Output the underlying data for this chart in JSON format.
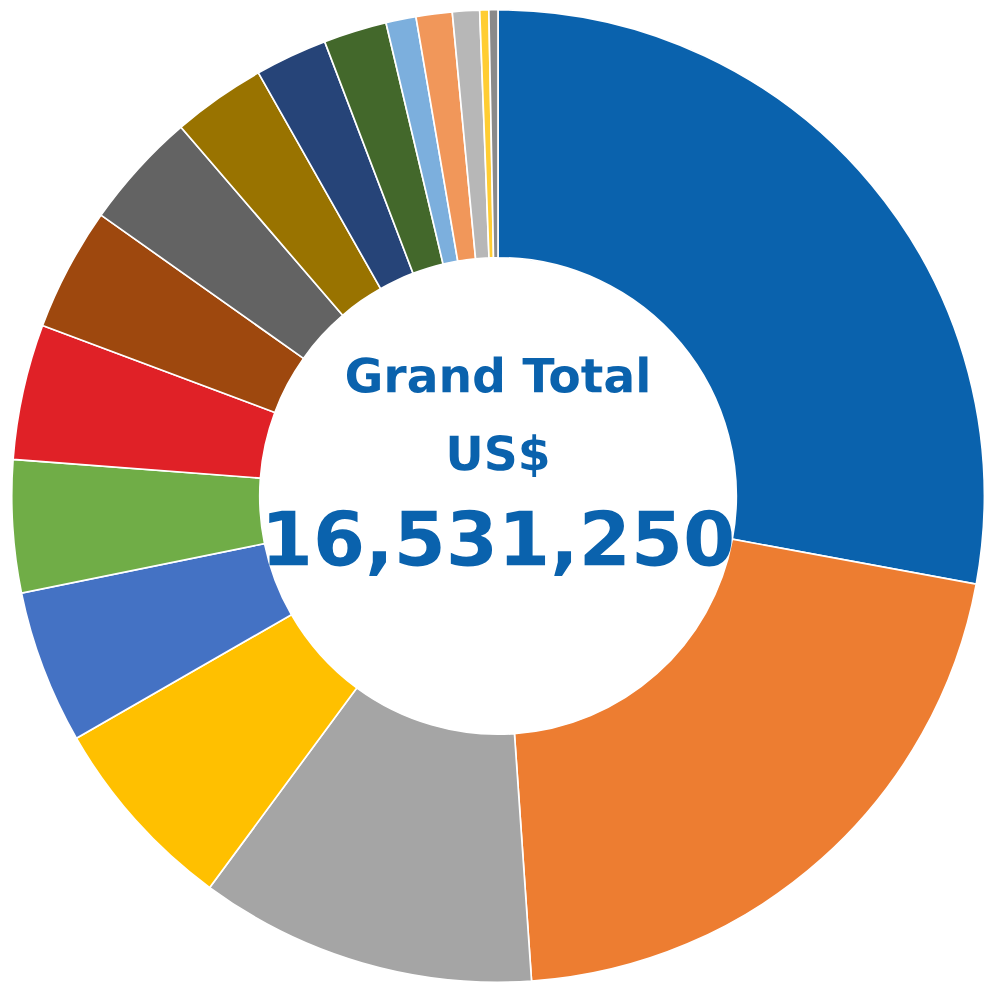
{
  "chart_data": {
    "type": "donut",
    "categories": [
      null,
      null,
      null,
      null,
      null,
      null,
      null,
      null,
      null,
      null,
      null,
      null,
      null,
      null,
      null,
      null,
      null
    ],
    "values": [
      27.9,
      21.0,
      11.2,
      6.6,
      5.1,
      4.4,
      4.5,
      4.1,
      3.9,
      3.1,
      2.4,
      2.1,
      1.0,
      1.2,
      0.9,
      0.3,
      0.3
    ],
    "colors": [
      "#0a62ad",
      "#ed7d31",
      "#a5a5a5",
      "#ffc000",
      "#4472c4",
      "#70ad47",
      "#e02127",
      "#9e480e",
      "#636363",
      "#997300",
      "#264478",
      "#43682b",
      "#7cafdd",
      "#f1975a",
      "#b7b7b7",
      "#ffcd33",
      "#8a8a8a"
    ],
    "annotations": [
      "Grand Total",
      "US$",
      "16,531,250"
    ]
  }
}
